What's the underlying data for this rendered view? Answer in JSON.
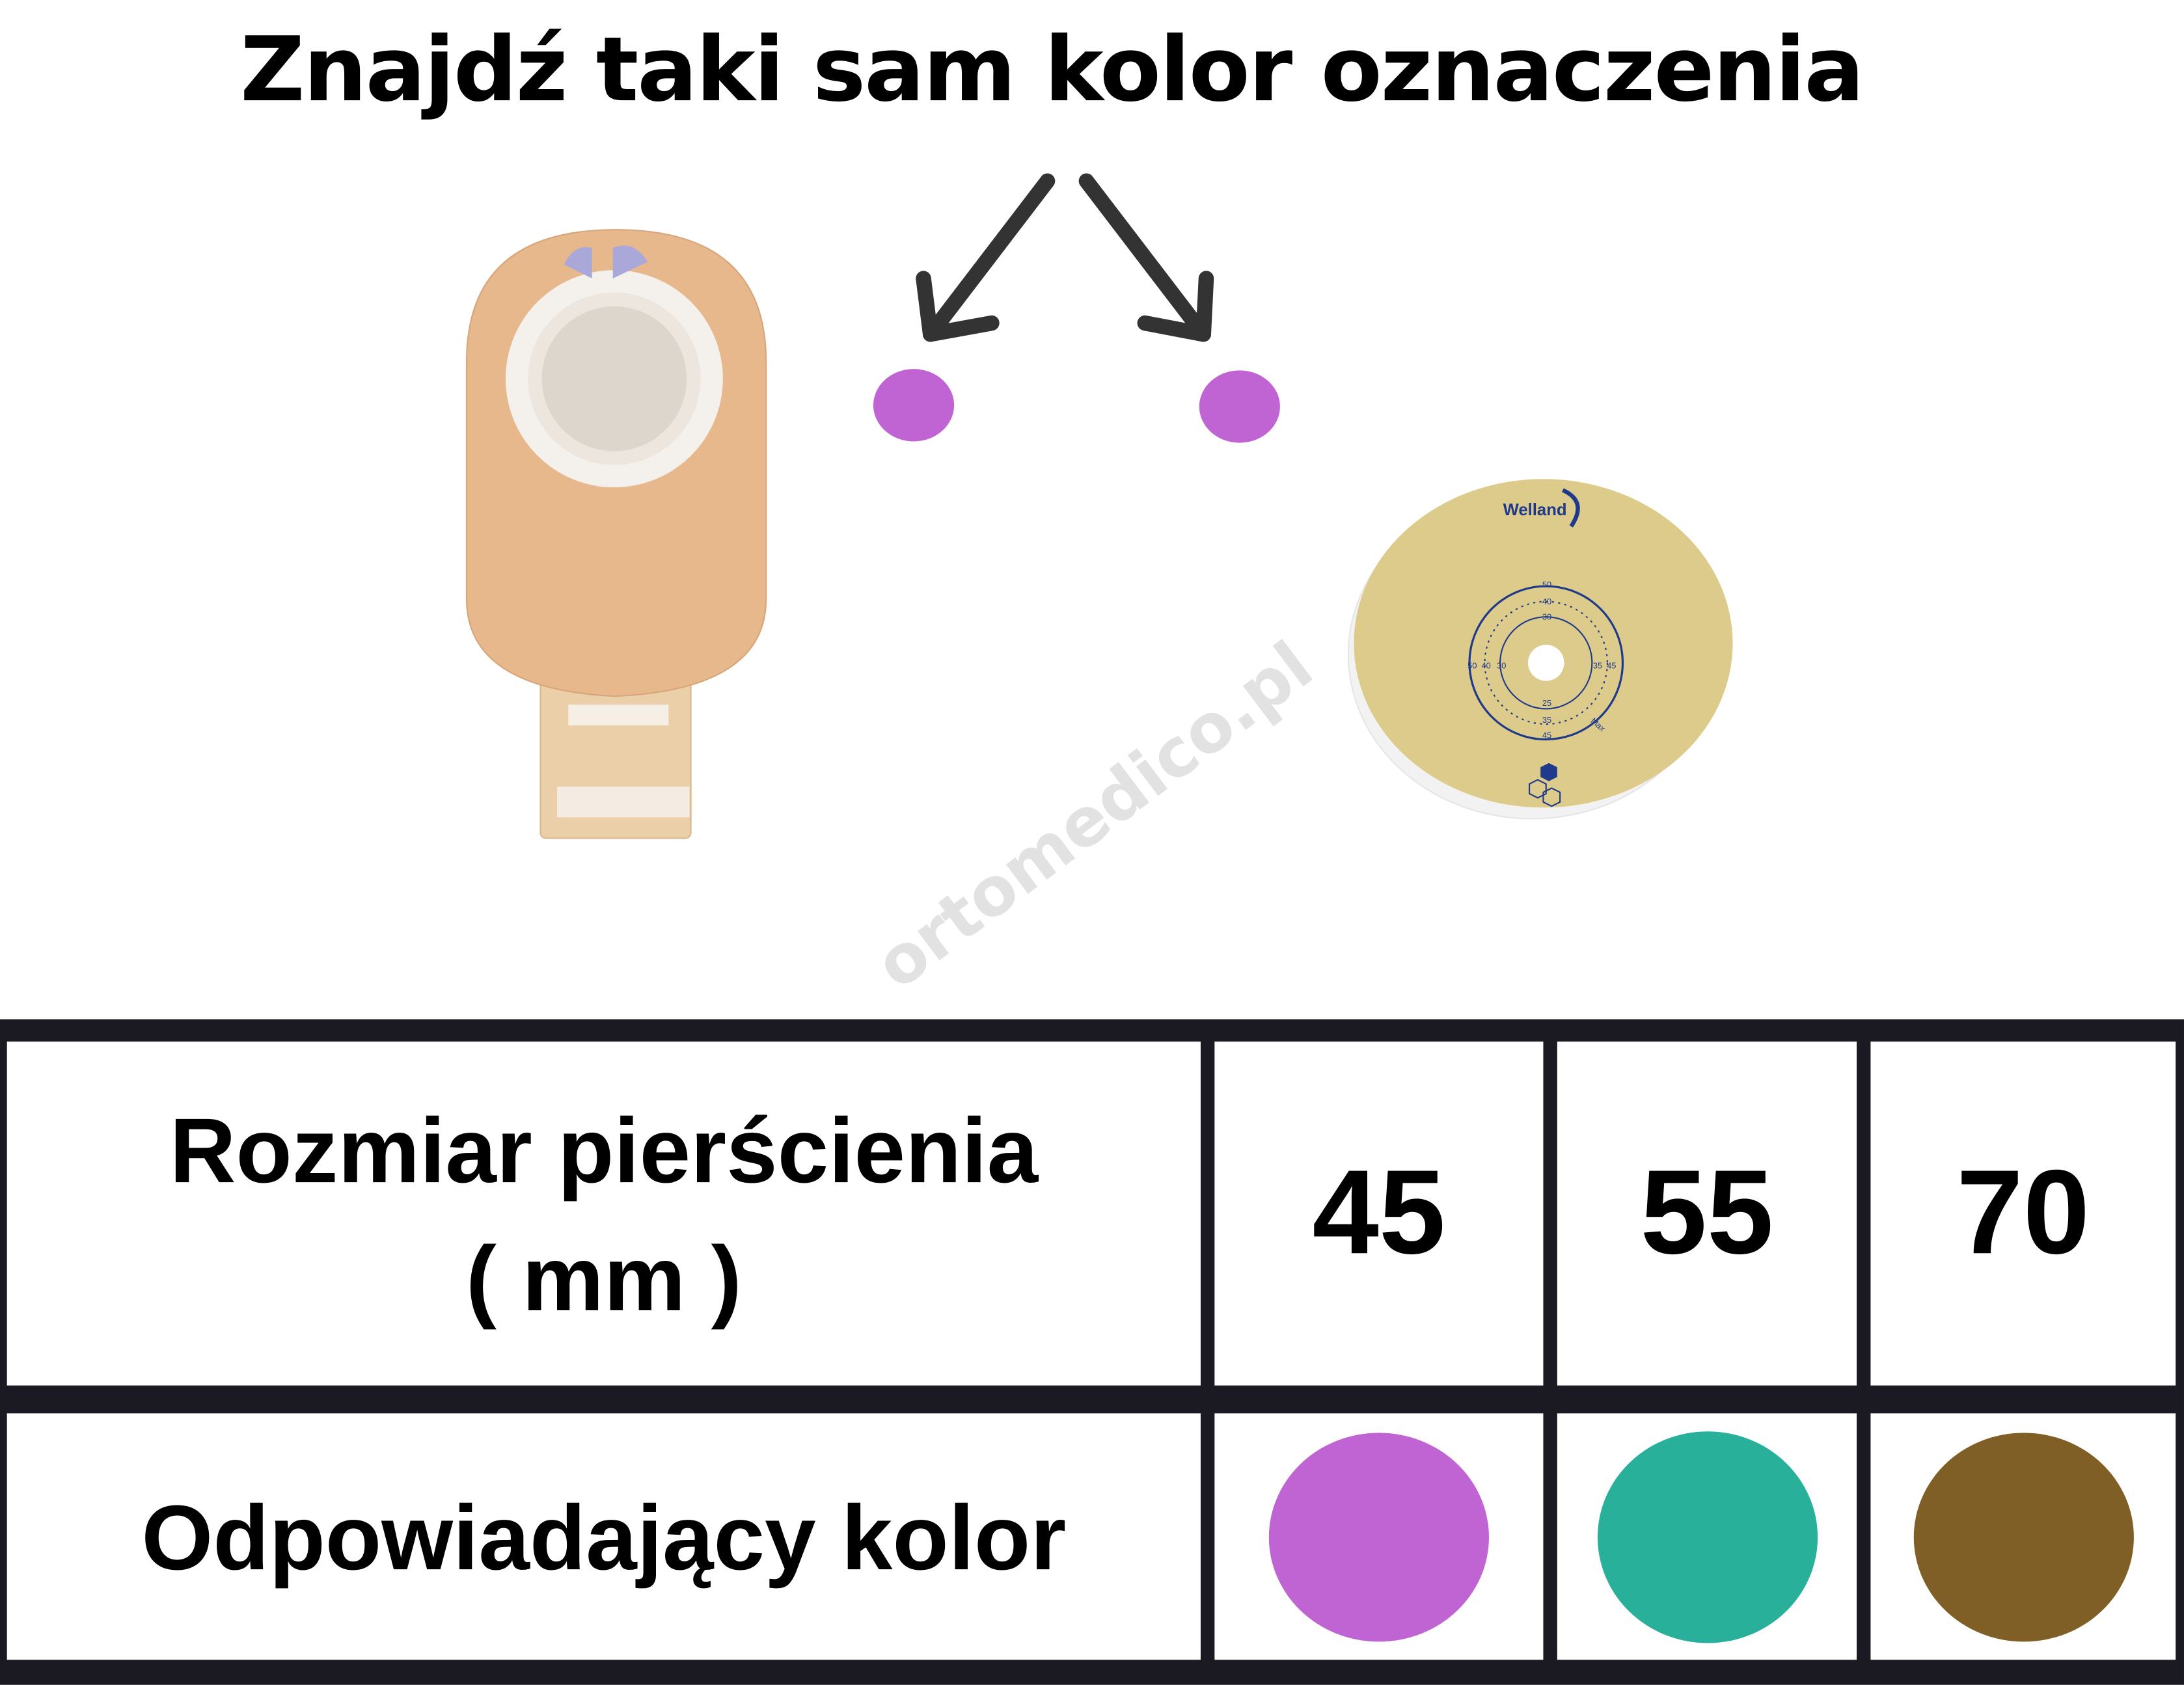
{
  "title": "Znajdź taki sam kolor oznaczenia",
  "markers": {
    "color": "#c064d4",
    "count": 2
  },
  "watermark": "ortomedico.pl",
  "wafer": {
    "brand": "Welland",
    "scale_labels": [
      "50",
      "40",
      "30",
      "50",
      "40",
      "30",
      "35",
      "45",
      "25",
      "35",
      "45",
      "Max"
    ]
  },
  "table": {
    "row_size_label": [
      "Rozmiar pierścienia",
      "( mm )"
    ],
    "row_color_label": "Odpowiadający kolor",
    "columns": [
      {
        "size": "45",
        "color": "#c064d4"
      },
      {
        "size": "55",
        "color": "#28b09a"
      },
      {
        "size": "70",
        "color": "#7f5f26"
      }
    ]
  }
}
